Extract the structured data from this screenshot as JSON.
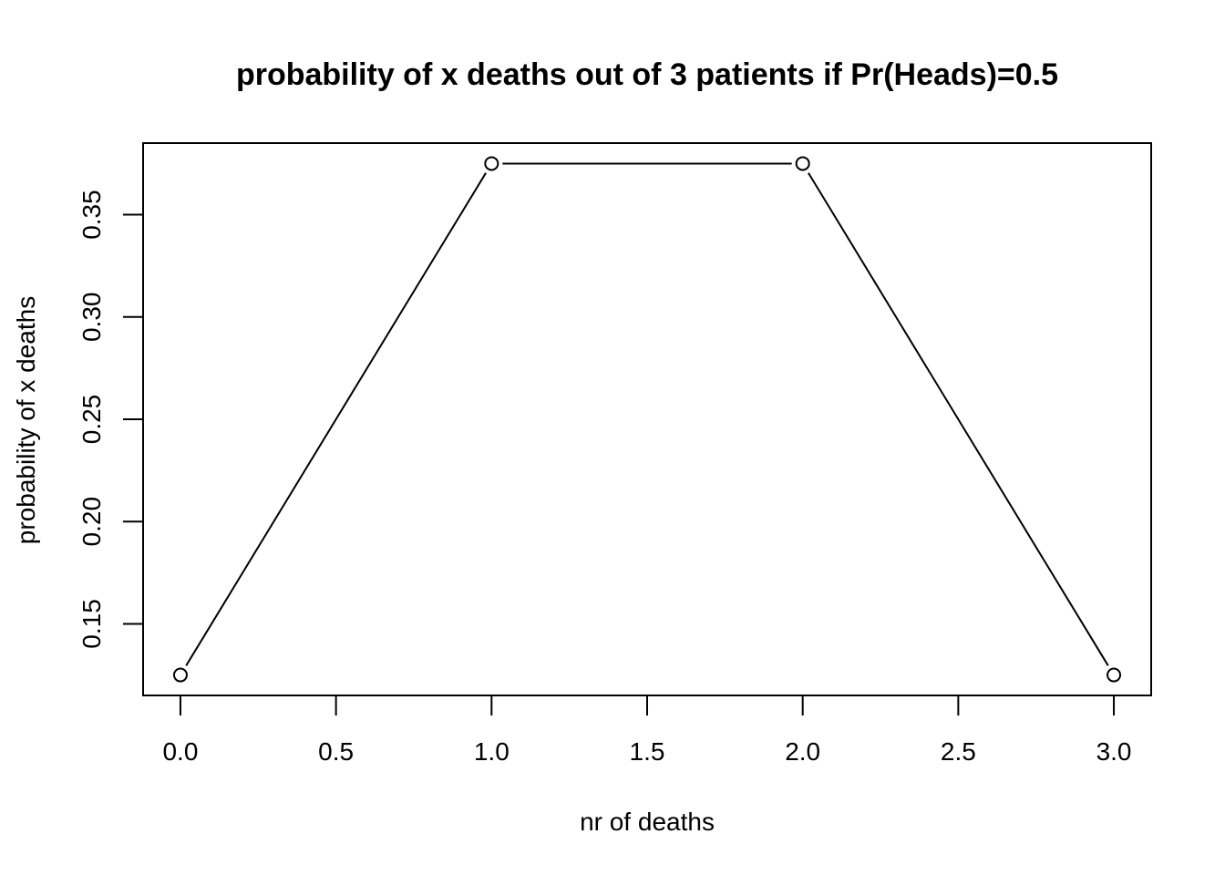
{
  "chart_data": {
    "type": "line",
    "title": "probability of x deaths out of 3 patients if Pr(Heads)=0.5",
    "xlabel": "nr of deaths",
    "ylabel": "probability of x deaths",
    "x": [
      0,
      1,
      2,
      3
    ],
    "y": [
      0.125,
      0.375,
      0.375,
      0.125
    ],
    "xlim": [
      -0.12,
      3.12
    ],
    "ylim": [
      0.115,
      0.385
    ],
    "xticks": [
      0.0,
      0.5,
      1.0,
      1.5,
      2.0,
      2.5,
      3.0
    ],
    "xtick_labels": [
      "0.0",
      "0.5",
      "1.0",
      "1.5",
      "2.0",
      "2.5",
      "3.0"
    ],
    "yticks": [
      0.15,
      0.2,
      0.25,
      0.3,
      0.35
    ],
    "ytick_labels": [
      "0.15",
      "0.20",
      "0.25",
      "0.30",
      "0.35"
    ],
    "marker": "open-circle",
    "line_style": "b",
    "grid": false,
    "colors": {
      "line": "#000000",
      "marker_fill": "#ffffff",
      "background": "#ffffff"
    }
  }
}
